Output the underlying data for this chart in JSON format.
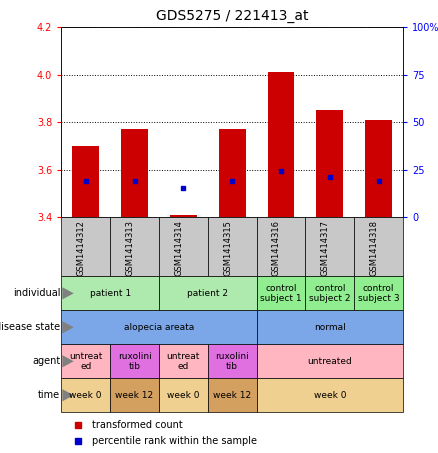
{
  "title": "GDS5275 / 221413_at",
  "samples": [
    "GSM1414312",
    "GSM1414313",
    "GSM1414314",
    "GSM1414315",
    "GSM1414316",
    "GSM1414317",
    "GSM1414318"
  ],
  "bar_values": [
    3.7,
    3.77,
    3.41,
    3.77,
    4.01,
    3.85,
    3.81
  ],
  "dot_values": [
    3.555,
    3.555,
    3.525,
    3.555,
    3.595,
    3.57,
    3.555
  ],
  "bar_bottom": 3.4,
  "ylim": [
    3.4,
    4.2
  ],
  "y2lim": [
    0,
    100
  ],
  "yticks": [
    3.4,
    3.6,
    3.8,
    4.0,
    4.2
  ],
  "y2ticks": [
    0,
    25,
    50,
    75,
    100
  ],
  "y2ticklabels": [
    "0",
    "25",
    "50",
    "75",
    "100%"
  ],
  "bar_color": "#cc0000",
  "dot_color": "#0000cc",
  "xticklabel_bg": "#c8c8c8",
  "row_labels": [
    "individual",
    "disease state",
    "agent",
    "time"
  ],
  "individual_cells": [
    {
      "text": "patient 1",
      "cols": [
        0,
        1
      ],
      "color": "#aeeaae"
    },
    {
      "text": "patient 2",
      "cols": [
        2,
        3
      ],
      "color": "#aeeaae"
    },
    {
      "text": "control\nsubject 1",
      "cols": [
        4
      ],
      "color": "#90ee90"
    },
    {
      "text": "control\nsubject 2",
      "cols": [
        5
      ],
      "color": "#90ee90"
    },
    {
      "text": "control\nsubject 3",
      "cols": [
        6
      ],
      "color": "#90ee90"
    }
  ],
  "disease_cells": [
    {
      "text": "alopecia areata",
      "cols": [
        0,
        1,
        2,
        3
      ],
      "color": "#7ba7e8"
    },
    {
      "text": "normal",
      "cols": [
        4,
        5,
        6
      ],
      "color": "#7ba7e8"
    }
  ],
  "agent_cells": [
    {
      "text": "untreat\ned",
      "cols": [
        0
      ],
      "color": "#ffb6c1"
    },
    {
      "text": "ruxolini\ntib",
      "cols": [
        1
      ],
      "color": "#e070e0"
    },
    {
      "text": "untreat\ned",
      "cols": [
        2
      ],
      "color": "#ffb6c1"
    },
    {
      "text": "ruxolini\ntib",
      "cols": [
        3
      ],
      "color": "#e070e0"
    },
    {
      "text": "untreated",
      "cols": [
        4,
        5,
        6
      ],
      "color": "#ffb6c1"
    }
  ],
  "time_cells": [
    {
      "text": "week 0",
      "cols": [
        0
      ],
      "color": "#f0d090"
    },
    {
      "text": "week 12",
      "cols": [
        1
      ],
      "color": "#d4a060"
    },
    {
      "text": "week 0",
      "cols": [
        2
      ],
      "color": "#f0d090"
    },
    {
      "text": "week 12",
      "cols": [
        3
      ],
      "color": "#d4a060"
    },
    {
      "text": "week 0",
      "cols": [
        4,
        5,
        6
      ],
      "color": "#f0d090"
    }
  ],
  "legend_bar_label": "transformed count",
  "legend_dot_label": "percentile rank within the sample",
  "fig_width": 4.38,
  "fig_height": 4.53
}
